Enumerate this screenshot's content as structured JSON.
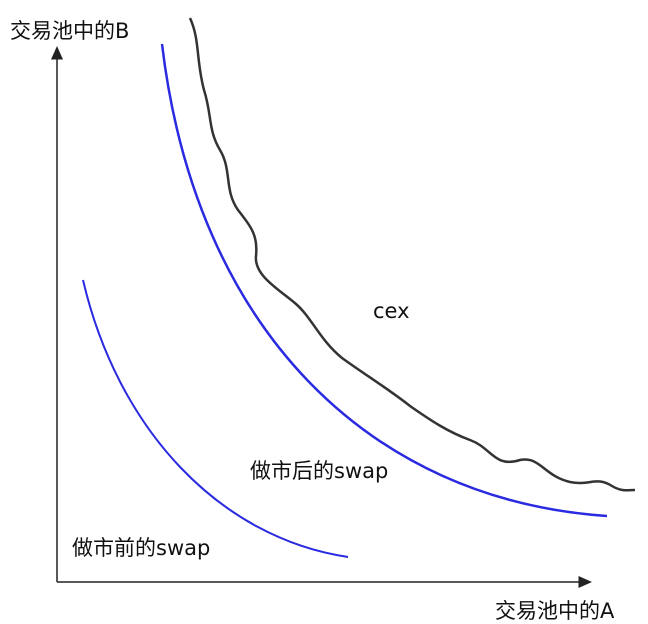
{
  "axes": {
    "y_label": "交易池中的B",
    "x_label": "交易池中的A"
  },
  "curves": {
    "cex": "cex",
    "after": "做市后的swap",
    "before": "做市前的swap"
  }
}
